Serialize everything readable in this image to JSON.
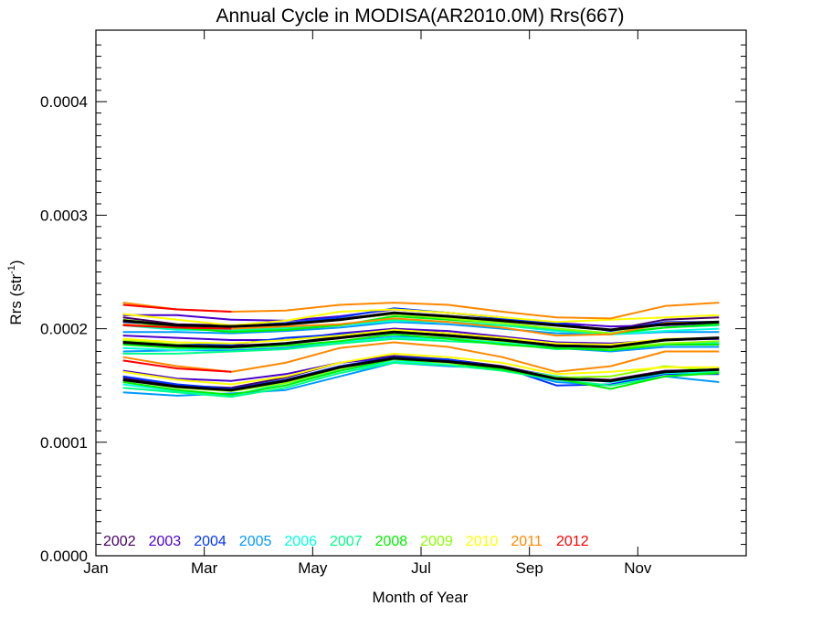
{
  "chart_data": {
    "type": "line",
    "title": "Annual Cycle in MODISA(AR2010.0M) Rrs(667)",
    "xlabel": "Month of Year",
    "ylabel_main": "Rrs (str",
    "ylabel_sup": "-1",
    "ylabel_close": ")",
    "x_ticks": [
      "Jan",
      "Mar",
      "May",
      "Jul",
      "Sep",
      "Nov"
    ],
    "x_tick_months": [
      1,
      3,
      5,
      7,
      9,
      11
    ],
    "xlim": [
      1,
      13
    ],
    "y_ticks": [
      "0.0000",
      "0.0001",
      "0.0002",
      "0.0003",
      "0.0004"
    ],
    "y_tick_values": [
      0,
      0.0001,
      0.0002,
      0.0003,
      0.0004
    ],
    "ylim": [
      0,
      0.000463
    ],
    "grid": false,
    "legend_position": "bottom-left inside plot",
    "x": [
      1.5,
      2.5,
      3.5,
      4.5,
      5.5,
      6.5,
      7.5,
      8.5,
      9.5,
      10.5,
      11.5,
      12.5
    ],
    "series": [
      {
        "name": "2002",
        "color": "#440066",
        "lines": [
          [
            0.00021,
            0.000204,
            0.000203,
            0.000204,
            0.000208,
            0.000213,
            0.000211,
            0.000208,
            0.000204,
            0.000199,
            0.000208,
            0.00021
          ],
          [
            0.000188,
            0.000185,
            0.000185,
            0.000187,
            0.000193,
            0.0002,
            0.000196,
            0.000192,
            0.000186,
            0.000184,
            0.00019,
            0.000192
          ],
          [
            0.000157,
            0.00015,
            0.000148,
            0.000157,
            0.00017,
            0.000176,
            0.000173,
            0.000167,
            0.000157,
            0.000155,
            0.000163,
            0.000164
          ]
        ]
      },
      {
        "name": "2003",
        "color": "#4a00cc",
        "lines": [
          [
            0.000212,
            0.000212,
            0.000208,
            0.000207,
            0.000211,
            0.000217,
            0.000214,
            0.00021,
            0.000205,
            0.000202,
            0.000203,
            0.000205
          ],
          [
            0.000194,
            0.000192,
            0.00019,
            0.00019,
            0.000196,
            0.0002,
            0.000198,
            0.000193,
            0.000188,
            0.000187,
            0.00019,
            0.000191
          ],
          [
            0.000163,
            0.000156,
            0.000154,
            0.00016,
            0.00017,
            0.000175,
            0.000172,
            0.000166,
            0.000158,
            0.000154,
            0.000161,
            0.000163
          ]
        ]
      },
      {
        "name": "2004",
        "color": "#0033ff",
        "lines": [
          [
            0.000206,
            0.000203,
            0.000202,
            0.000205,
            0.00021,
            0.000218,
            0.000214,
            0.000209,
            0.000205,
            0.000198,
            0.000206,
            0.000206
          ],
          [
            0.000186,
            0.000186,
            0.000186,
            0.000192,
            0.000195,
            0.000198,
            0.000195,
            0.000191,
            0.000185,
            0.000184,
            0.000186,
            0.000186
          ],
          [
            0.000158,
            0.000151,
            0.000147,
            0.000155,
            0.000167,
            0.000175,
            0.000173,
            0.000166,
            0.00015,
            0.000151,
            0.00016,
            0.00016
          ]
        ]
      },
      {
        "name": "2005",
        "color": "#0099ff",
        "lines": [
          [
            0.000197,
            0.000197,
            0.000196,
            0.000198,
            0.000201,
            0.000206,
            0.000204,
            0.0002,
            0.000196,
            0.000195,
            0.000197,
            0.000197
          ],
          [
            0.00018,
            0.000181,
            0.000181,
            0.000183,
            0.000188,
            0.000193,
            0.000192,
            0.000188,
            0.000183,
            0.00018,
            0.000184,
            0.000184
          ],
          [
            0.000144,
            0.000141,
            0.000143,
            0.000146,
            0.000158,
            0.00017,
            0.000167,
            0.000165,
            0.000153,
            0.00015,
            0.000158,
            0.000153
          ]
        ]
      },
      {
        "name": "2006",
        "color": "#00ffdd",
        "lines": [
          [
            0.000203,
            0.000199,
            0.000199,
            0.0002,
            0.000203,
            0.000207,
            0.000206,
            0.000203,
            0.000198,
            0.000195,
            0.000198,
            0.0002
          ],
          [
            0.000183,
            0.000181,
            0.000183,
            0.000185,
            0.000188,
            0.000192,
            0.000191,
            0.000188,
            0.000184,
            0.000183,
            0.000187,
            0.000187
          ],
          [
            0.000151,
            0.000145,
            0.000141,
            0.000152,
            0.000163,
            0.000171,
            0.00017,
            0.000165,
            0.000158,
            0.000153,
            0.000161,
            0.000162
          ]
        ]
      },
      {
        "name": "2007",
        "color": "#00ff88",
        "lines": [
          [
            0.000203,
            0.0002,
            0.000198,
            0.000201,
            0.000204,
            0.000208,
            0.000206,
            0.000203,
            0.000199,
            0.000195,
            0.000201,
            0.000203
          ],
          [
            0.000178,
            0.000178,
            0.00018,
            0.000182,
            0.000187,
            0.000191,
            0.000189,
            0.000187,
            0.000182,
            0.000183,
            0.000186,
            0.000188
          ],
          [
            0.000148,
            0.000144,
            0.00014,
            0.000148,
            0.000161,
            0.00017,
            0.000168,
            0.000163,
            0.000155,
            0.00015,
            0.000158,
            0.000162
          ]
        ]
      },
      {
        "name": "2008",
        "color": "#00ee00",
        "lines": [
          [
            0.000207,
            0.000201,
            0.000197,
            0.000199,
            0.000203,
            0.000211,
            0.000208,
            0.000205,
            0.0002,
            0.000196,
            0.000201,
            0.000204
          ],
          [
            0.000186,
            0.000183,
            0.000183,
            0.000185,
            0.000189,
            0.000195,
            0.000191,
            0.000186,
            0.000183,
            0.000181,
            0.000186,
            0.000186
          ],
          [
            0.000153,
            0.000146,
            0.000142,
            0.00015,
            0.000163,
            0.000173,
            0.00017,
            0.000164,
            0.000156,
            0.000147,
            0.000158,
            0.000161
          ]
        ]
      },
      {
        "name": "2009",
        "color": "#88ff00",
        "lines": [
          [
            0.000208,
            0.000203,
            0.000202,
            0.000204,
            0.000208,
            0.000213,
            0.000209,
            0.000205,
            0.0002,
            0.000196,
            0.000204,
            0.000206
          ],
          [
            0.00019,
            0.000186,
            0.000184,
            0.000187,
            0.000192,
            0.000197,
            0.000193,
            0.000189,
            0.000185,
            0.000183,
            0.000187,
            0.000189
          ],
          [
            0.000155,
            0.000148,
            0.000145,
            0.000152,
            0.000165,
            0.000174,
            0.00017,
            0.000166,
            0.000157,
            0.000158,
            0.000167,
            0.000163
          ]
        ]
      },
      {
        "name": "2010",
        "color": "#ffff00",
        "lines": [
          [
            0.000213,
            0.000208,
            0.000203,
            0.000207,
            0.000215,
            0.000217,
            0.000214,
            0.00021,
            0.000206,
            0.000208,
            0.00021,
            0.000212
          ],
          [
            0.000191,
            0.000188,
            0.000187,
            0.00019,
            0.000194,
            0.000199,
            0.000196,
            0.000192,
            0.000187,
            0.000186,
            0.000191,
            0.000192
          ],
          [
            0.000162,
            0.000155,
            0.000151,
            0.000158,
            0.00017,
            0.000178,
            0.000175,
            0.00017,
            0.00016,
            0.000162,
            0.000166,
            0.000166
          ]
        ]
      },
      {
        "name": "2011",
        "color": "#ff8800",
        "lines": [
          [
            0.000223,
            0.000217,
            0.000215,
            0.000216,
            0.000221,
            0.000223,
            0.000221,
            0.000215,
            0.00021,
            0.000209,
            0.00022,
            0.000223
          ],
          [
            0.000204,
            0.000201,
            0.0002,
            0.000202,
            0.000204,
            0.000209,
            0.000206,
            0.000201,
            0.000194,
            0.000195,
            0.000205,
            0.000206
          ],
          [
            0.000175,
            0.000167,
            0.000162,
            0.00017,
            0.000183,
            0.000188,
            0.000184,
            0.000175,
            0.000162,
            0.000167,
            0.00018,
            0.00018
          ]
        ]
      },
      {
        "name": "2012",
        "color": "#ff0000",
        "lines": [
          [
            0.000221,
            0.000217,
            0.000215
          ],
          [
            0.000203,
            0.000201,
            0.0002
          ],
          [
            0.000172,
            0.000165,
            0.000162
          ]
        ]
      },
      {
        "name": "",
        "color": "#000000",
        "lines": [
          [
            0.000207,
            0.000203,
            0.000202,
            0.000204,
            0.000208,
            0.000214,
            0.000211,
            0.000207,
            0.000203,
            0.000199,
            0.000204,
            0.000206
          ],
          [
            0.000188,
            0.000185,
            0.000184,
            0.000187,
            0.000192,
            0.000197,
            0.000194,
            0.00019,
            0.000185,
            0.000184,
            0.00019,
            0.000192
          ],
          [
            0.000155,
            0.000149,
            0.000146,
            0.000154,
            0.000166,
            0.000174,
            0.000171,
            0.000166,
            0.000156,
            0.000154,
            0.000162,
            0.000164
          ]
        ]
      }
    ]
  }
}
